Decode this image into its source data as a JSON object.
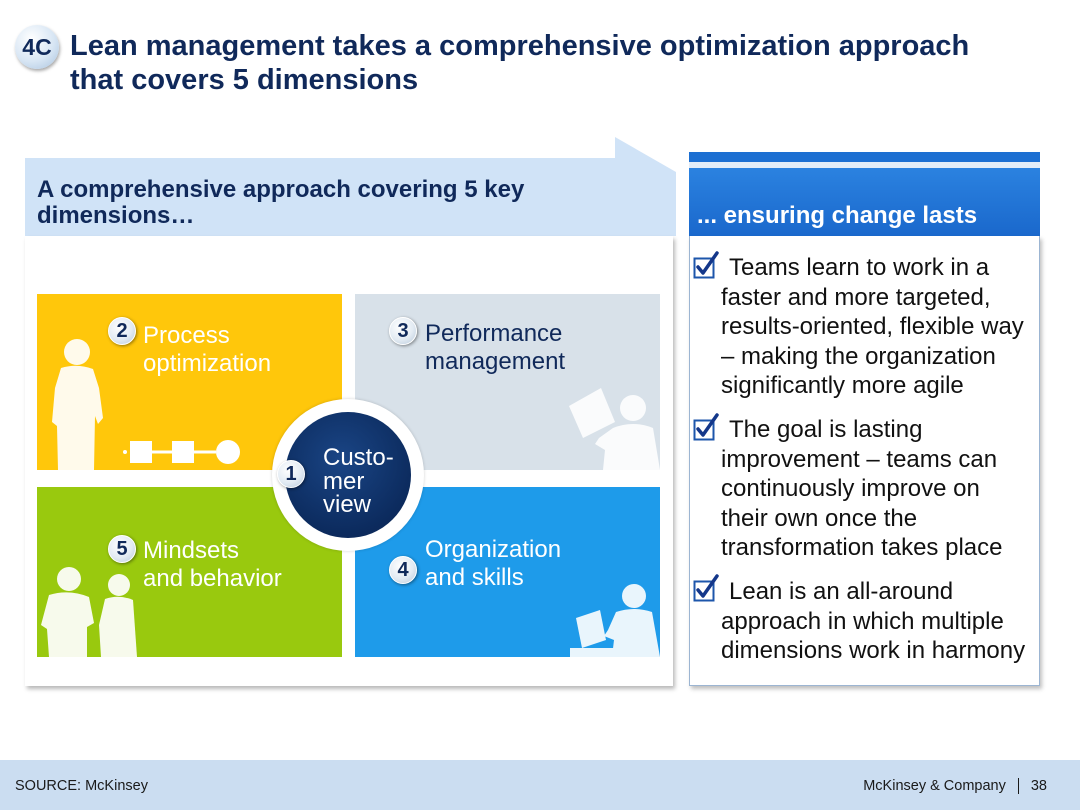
{
  "slide": {
    "badge": "4C",
    "title_lines": [
      "Lean management takes a comprehensive optimization approach",
      "that covers 5 dimensions"
    ]
  },
  "left_panel": {
    "header_lines": [
      "A comprehensive approach covering 5 key",
      "dimensions…"
    ],
    "center": {
      "number": "1",
      "lines": [
        "Custo-",
        "mer",
        "view"
      ],
      "color": "#0C2B5E"
    },
    "quadrants": [
      {
        "number": "2",
        "lines": [
          "Process",
          "optimization"
        ],
        "color": "#FFC70B",
        "text_color": "#FFFFFF",
        "icons": [
          "person-silhouette-icon",
          "process-flow-icon"
        ]
      },
      {
        "number": "3",
        "lines": [
          "Performance",
          "management"
        ],
        "color": "#D8E1E9",
        "text_color": "#10295A",
        "icons": [
          "laptop-user-icon"
        ]
      },
      {
        "number": "5",
        "lines": [
          "Mindsets",
          "and behavior"
        ],
        "color": "#99C90E",
        "text_color": "#FFFFFF",
        "icons": [
          "two-people-icon"
        ]
      },
      {
        "number": "4",
        "lines": [
          "Organization",
          "and skills"
        ],
        "color": "#1E9BEA",
        "text_color": "#FFFFFF",
        "icons": [
          "desk-worker-icon"
        ]
      }
    ]
  },
  "right_panel": {
    "header": "... ensuring change lasts",
    "check_icon": "checkbox-checked-icon",
    "items": [
      {
        "lines": [
          "Teams learn to work in a",
          "faster and more targeted,",
          "results-oriented, flexible way",
          "– making the organization",
          "significantly more agile"
        ]
      },
      {
        "lines": [
          "The goal is lasting",
          "improvement – teams can",
          "continuously improve on",
          "their own once the",
          "transformation takes place"
        ]
      },
      {
        "lines": [
          "Lean is an all-around",
          "approach in which multiple",
          "dimensions work in harmony"
        ]
      }
    ]
  },
  "footer": {
    "source": "SOURCE: McKinsey",
    "company": "McKinsey & Company",
    "page": "38"
  },
  "colors": {
    "title_navy": "#10295A",
    "header_band": "#D0E3F7",
    "right_header": "#1C6FD2",
    "footer_band": "#CBDDF1"
  }
}
